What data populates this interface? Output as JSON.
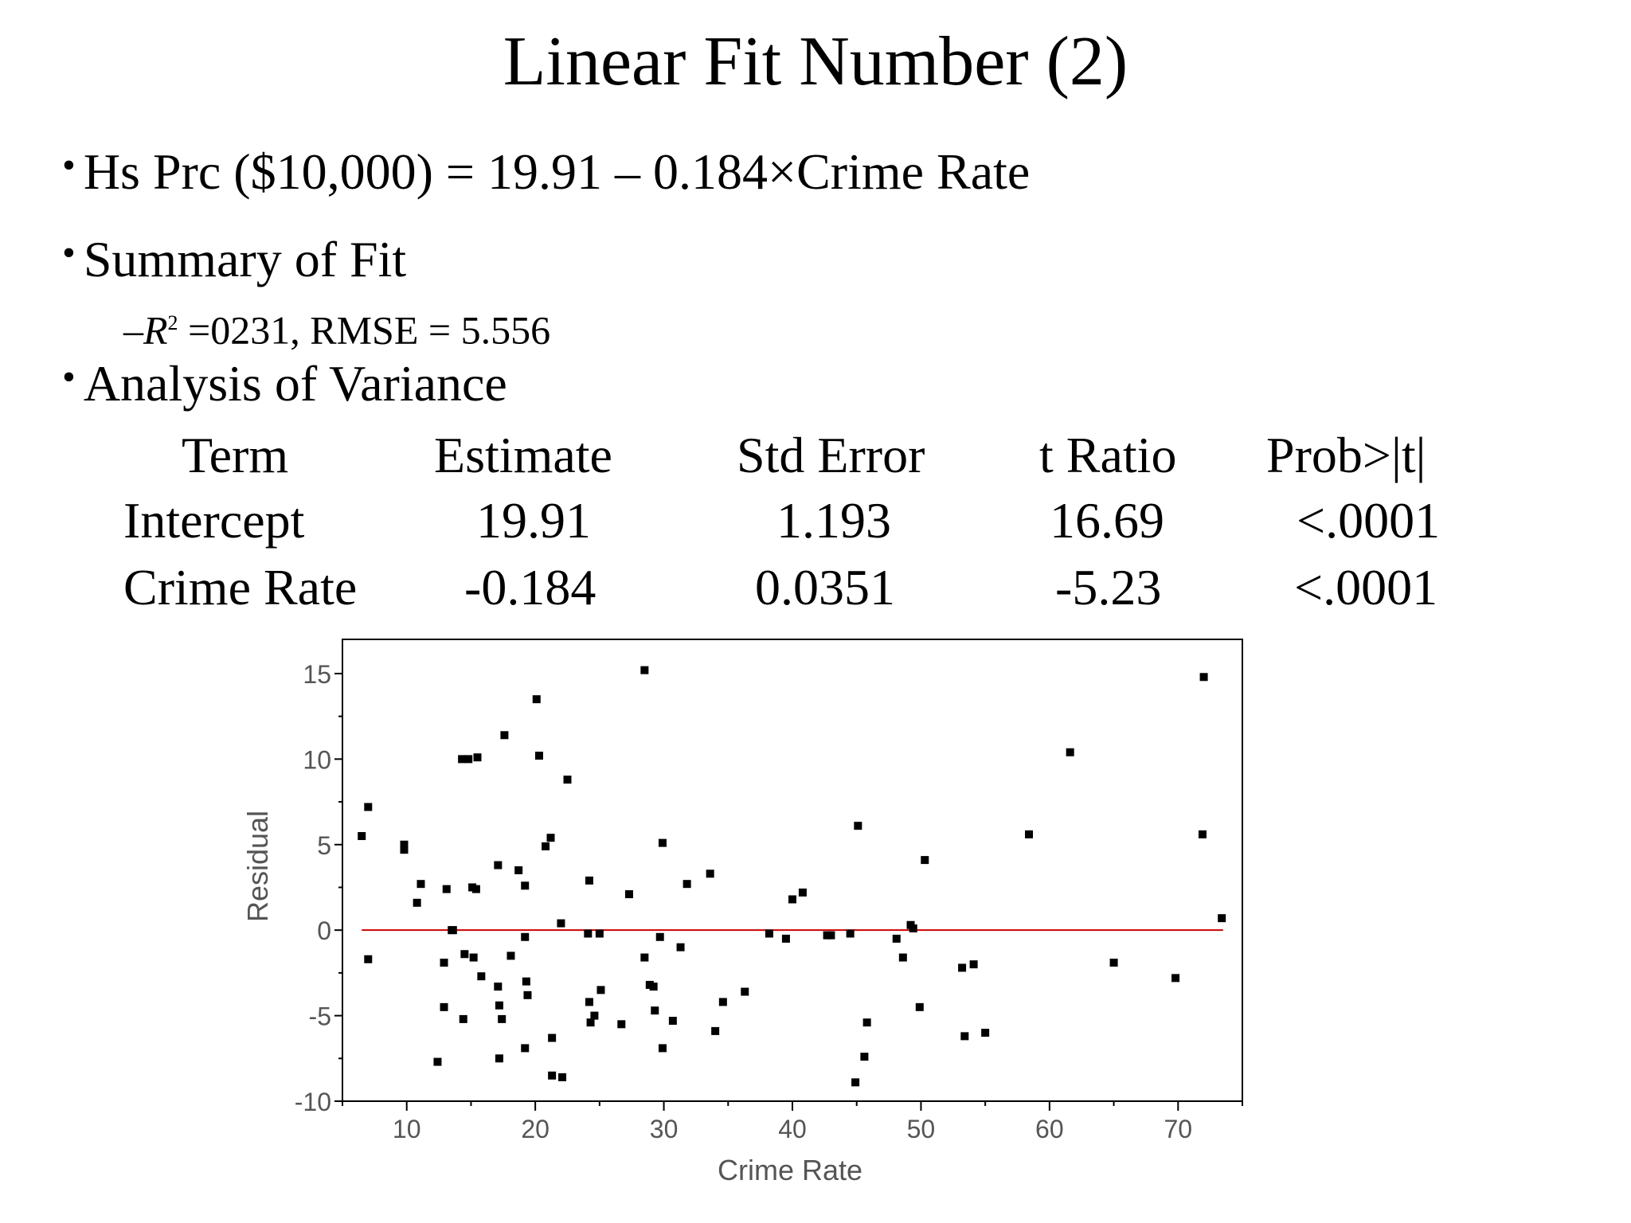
{
  "title": "Linear Fit Number (2)",
  "bullets": {
    "equation": "Hs Prc ($10,000) = 19.91 – 0.184×Crime Rate",
    "summary_heading": "Summary of Fit",
    "summary_dash": "–",
    "summary_r2_symbol": "R",
    "summary_r2_sup": "2",
    "summary_r2_value": " =0231,  RMSE = 5.556",
    "anova_heading": "Analysis of Variance"
  },
  "anova_table": {
    "headers": [
      "Term",
      "Estimate",
      "Std Error",
      "t Ratio",
      "Prob>|t|"
    ],
    "rows": [
      [
        "Intercept",
        "19.91",
        "1.193",
        "16.69",
        "<.0001"
      ],
      [
        "Crime Rate",
        "-0.184",
        "0.0351",
        "-5.23",
        "<.0001"
      ]
    ]
  },
  "chart_data": {
    "type": "scatter",
    "title": "",
    "xlabel": "Crime Rate",
    "ylabel": "Residual",
    "xlim": [
      5,
      75
    ],
    "ylim": [
      -10,
      17
    ],
    "xticks": [
      10,
      20,
      30,
      40,
      50,
      60,
      70
    ],
    "yticks": [
      -10,
      -5,
      0,
      5,
      10,
      15
    ],
    "grid": false,
    "reference_line": {
      "y": 0,
      "x_range": [
        6.5,
        73.5
      ],
      "color": "#cc0000"
    },
    "marker_color": "#000000",
    "points": [
      [
        6.5,
        5.5
      ],
      [
        7,
        7.2
      ],
      [
        7,
        -1.7
      ],
      [
        9.8,
        5.0
      ],
      [
        9.8,
        4.7
      ],
      [
        10.8,
        1.6
      ],
      [
        11.1,
        2.7
      ],
      [
        12.4,
        -7.7
      ],
      [
        12.9,
        -1.9
      ],
      [
        12.9,
        -4.5
      ],
      [
        13.1,
        2.4
      ],
      [
        13.5,
        0.0
      ],
      [
        13.6,
        0.0
      ],
      [
        14.3,
        10.0
      ],
      [
        14.4,
        -5.2
      ],
      [
        14.5,
        -1.4
      ],
      [
        14.8,
        10.0
      ],
      [
        15.1,
        2.5
      ],
      [
        15.2,
        -1.6
      ],
      [
        15.4,
        2.4
      ],
      [
        15.5,
        10.1
      ],
      [
        15.8,
        -2.7
      ],
      [
        17.1,
        -3.3
      ],
      [
        17.1,
        3.8
      ],
      [
        17.2,
        -4.4
      ],
      [
        17.2,
        -7.5
      ],
      [
        17.4,
        -5.2
      ],
      [
        17.6,
        11.4
      ],
      [
        18.1,
        -1.5
      ],
      [
        18.7,
        3.5
      ],
      [
        19.2,
        -0.4
      ],
      [
        19.2,
        2.6
      ],
      [
        19.3,
        -3.0
      ],
      [
        19.4,
        -3.8
      ],
      [
        19.2,
        -6.9
      ],
      [
        20.1,
        13.5
      ],
      [
        20.3,
        10.2
      ],
      [
        20.8,
        4.9
      ],
      [
        21.2,
        5.4
      ],
      [
        21.3,
        -6.3
      ],
      [
        21.3,
        -8.5
      ],
      [
        22.0,
        0.4
      ],
      [
        22.1,
        -8.6
      ],
      [
        22.5,
        8.8
      ],
      [
        24.1,
        -0.2
      ],
      [
        24.2,
        2.9
      ],
      [
        24.2,
        -4.2
      ],
      [
        24.3,
        -5.4
      ],
      [
        24.6,
        -5.0
      ],
      [
        25.0,
        -0.2
      ],
      [
        25.1,
        -3.5
      ],
      [
        26.7,
        -5.5
      ],
      [
        27.3,
        2.1
      ],
      [
        28.5,
        15.2
      ],
      [
        28.5,
        -1.6
      ],
      [
        28.9,
        -3.2
      ],
      [
        29.2,
        -3.3
      ],
      [
        29.3,
        -4.7
      ],
      [
        29.7,
        -0.4
      ],
      [
        29.9,
        5.1
      ],
      [
        29.9,
        -6.9
      ],
      [
        30.7,
        -5.3
      ],
      [
        31.3,
        -1.0
      ],
      [
        31.8,
        2.7
      ],
      [
        33.6,
        3.3
      ],
      [
        34.0,
        -5.9
      ],
      [
        34.6,
        -4.2
      ],
      [
        36.3,
        -3.6
      ],
      [
        38.2,
        -0.2
      ],
      [
        39.5,
        -0.5
      ],
      [
        40.0,
        1.8
      ],
      [
        40.8,
        2.2
      ],
      [
        42.7,
        -0.3
      ],
      [
        43.0,
        -0.3
      ],
      [
        44.5,
        -0.2
      ],
      [
        44.9,
        -8.9
      ],
      [
        45.1,
        6.1
      ],
      [
        45.6,
        -7.4
      ],
      [
        45.8,
        -5.4
      ],
      [
        48.1,
        -0.5
      ],
      [
        48.6,
        -1.6
      ],
      [
        49.2,
        0.3
      ],
      [
        49.4,
        0.1
      ],
      [
        49.9,
        -4.5
      ],
      [
        50.3,
        4.1
      ],
      [
        53.2,
        -2.2
      ],
      [
        53.4,
        -6.2
      ],
      [
        54.1,
        -2.0
      ],
      [
        55.0,
        -6.0
      ],
      [
        58.4,
        5.6
      ],
      [
        61.6,
        10.4
      ],
      [
        65.0,
        -1.9
      ],
      [
        69.8,
        -2.8
      ],
      [
        71.9,
        5.6
      ],
      [
        72.0,
        14.8
      ],
      [
        73.4,
        0.7
      ]
    ]
  }
}
